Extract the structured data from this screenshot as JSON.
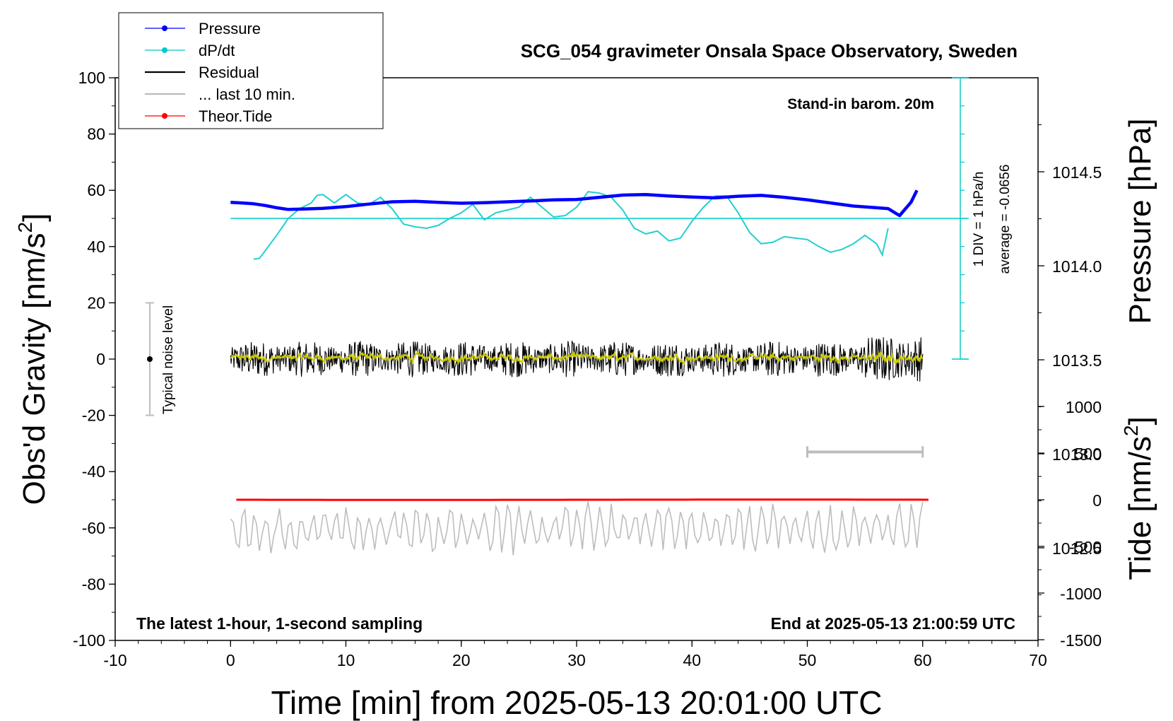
{
  "chart_data": {
    "type": "line",
    "title": "SCG_054 gravimeter Onsala Space Observatory, Sweden",
    "xlabel": "Time [min] from 2025-05-13 20:01:00 UTC",
    "ylabel": "Obs'd Gravity [nm/s",
    "ylabel_sup": "2",
    "ylabel_close": "]",
    "y2label": "Pressure [hPa]",
    "y3label": "Tide [nm/s",
    "y3label_sup": "2",
    "y3label_close": "]",
    "xlim": [
      -10,
      70
    ],
    "ylim": [
      -100,
      100
    ],
    "xticks": [
      -10,
      0,
      10,
      20,
      30,
      40,
      50,
      60,
      70
    ],
    "yticks": [
      -100,
      -80,
      -60,
      -40,
      -20,
      0,
      20,
      40,
      60,
      80,
      100
    ],
    "pressure_ticks": [
      1012.5,
      1013.0,
      1013.5,
      1014.0,
      1014.5
    ],
    "pressure_tick_labels": [
      "1012.5",
      "1013.0",
      "1013.5",
      "1014.0",
      "1014.5"
    ],
    "tide_ticks": [
      -1500,
      -1000,
      -500,
      0,
      500,
      1000
    ],
    "note_top_right": "Stand-in barom. 20m",
    "note_bottom_left": "The latest 1-hour, 1-second sampling",
    "note_bottom_right": "End at 2025-05-13 21:00:59 UTC",
    "dpdt_scale_label": "1 DIV = 1 hPa/h",
    "dpdt_average_label": "average = -0.0656",
    "noise_label": "Typical noise level",
    "noise_range": [
      -20,
      20
    ],
    "last10_window": [
      50,
      60
    ],
    "legend": [
      {
        "label": "Pressure",
        "color": "#0000ff",
        "marker": "dot"
      },
      {
        "label": "dP/dt",
        "color": "#00c8c8",
        "marker": "dot"
      },
      {
        "label": "Residual",
        "color": "#000000",
        "marker": "line"
      },
      {
        "label": "... last 10 min.",
        "color": "#bbbbbb",
        "marker": "line"
      },
      {
        "label": "Theor.Tide",
        "color": "#ff0000",
        "marker": "dot"
      }
    ],
    "series": [
      {
        "name": "Pressure",
        "color": "#0000ff",
        "x": [
          0,
          1,
          2,
          3,
          4,
          5,
          6,
          8,
          10,
          12,
          14,
          16,
          18,
          20,
          22,
          24,
          26,
          28,
          30,
          32,
          34,
          36,
          38,
          40,
          42,
          44,
          46,
          48,
          50,
          52,
          54,
          56,
          57,
          58,
          59,
          59.5
        ],
        "y": [
          55.7,
          55.5,
          55.2,
          54.6,
          53.8,
          53.2,
          53.3,
          53.6,
          54.2,
          55.1,
          55.9,
          56.1,
          55.7,
          55.4,
          55.6,
          55.9,
          56.2,
          56.6,
          56.7,
          57.5,
          58.3,
          58.5,
          58.0,
          57.6,
          57.3,
          57.9,
          58.2,
          57.5,
          56.6,
          55.5,
          54.4,
          53.8,
          53.5,
          51.0,
          55.8,
          60.0
        ]
      },
      {
        "name": "dP/dt",
        "color": "#00c8c8",
        "x": [
          2.0,
          2.5,
          3,
          4,
          5,
          6,
          7,
          7.5,
          8,
          8.5,
          9,
          10,
          11,
          12,
          13,
          14,
          15,
          16,
          17,
          18,
          19,
          20,
          21,
          22,
          23,
          24,
          25,
          26,
          27,
          28,
          29,
          30,
          31,
          32,
          33,
          34,
          35,
          36,
          37,
          38,
          39,
          40,
          41,
          42,
          43,
          44,
          45,
          46,
          47,
          48,
          49,
          50,
          51,
          52,
          53,
          54,
          55,
          56,
          56.5,
          57.0
        ],
        "y": [
          35.5,
          35.8,
          38.5,
          44,
          50,
          53.5,
          55.5,
          58.2,
          58.5,
          57,
          55.5,
          58.5,
          55.5,
          55,
          57.5,
          53.5,
          48,
          47,
          46.5,
          47.5,
          50,
          52,
          55,
          49.5,
          52,
          53,
          54,
          57.5,
          54,
          50.5,
          51,
          54,
          59.5,
          59,
          57.5,
          53,
          46.5,
          44.5,
          45.5,
          42,
          43,
          49,
          54,
          58,
          58,
          52,
          45,
          41,
          41.5,
          43.5,
          43,
          42.5,
          40,
          38,
          39,
          41,
          44,
          41,
          37,
          46.5
        ]
      }
    ]
  }
}
